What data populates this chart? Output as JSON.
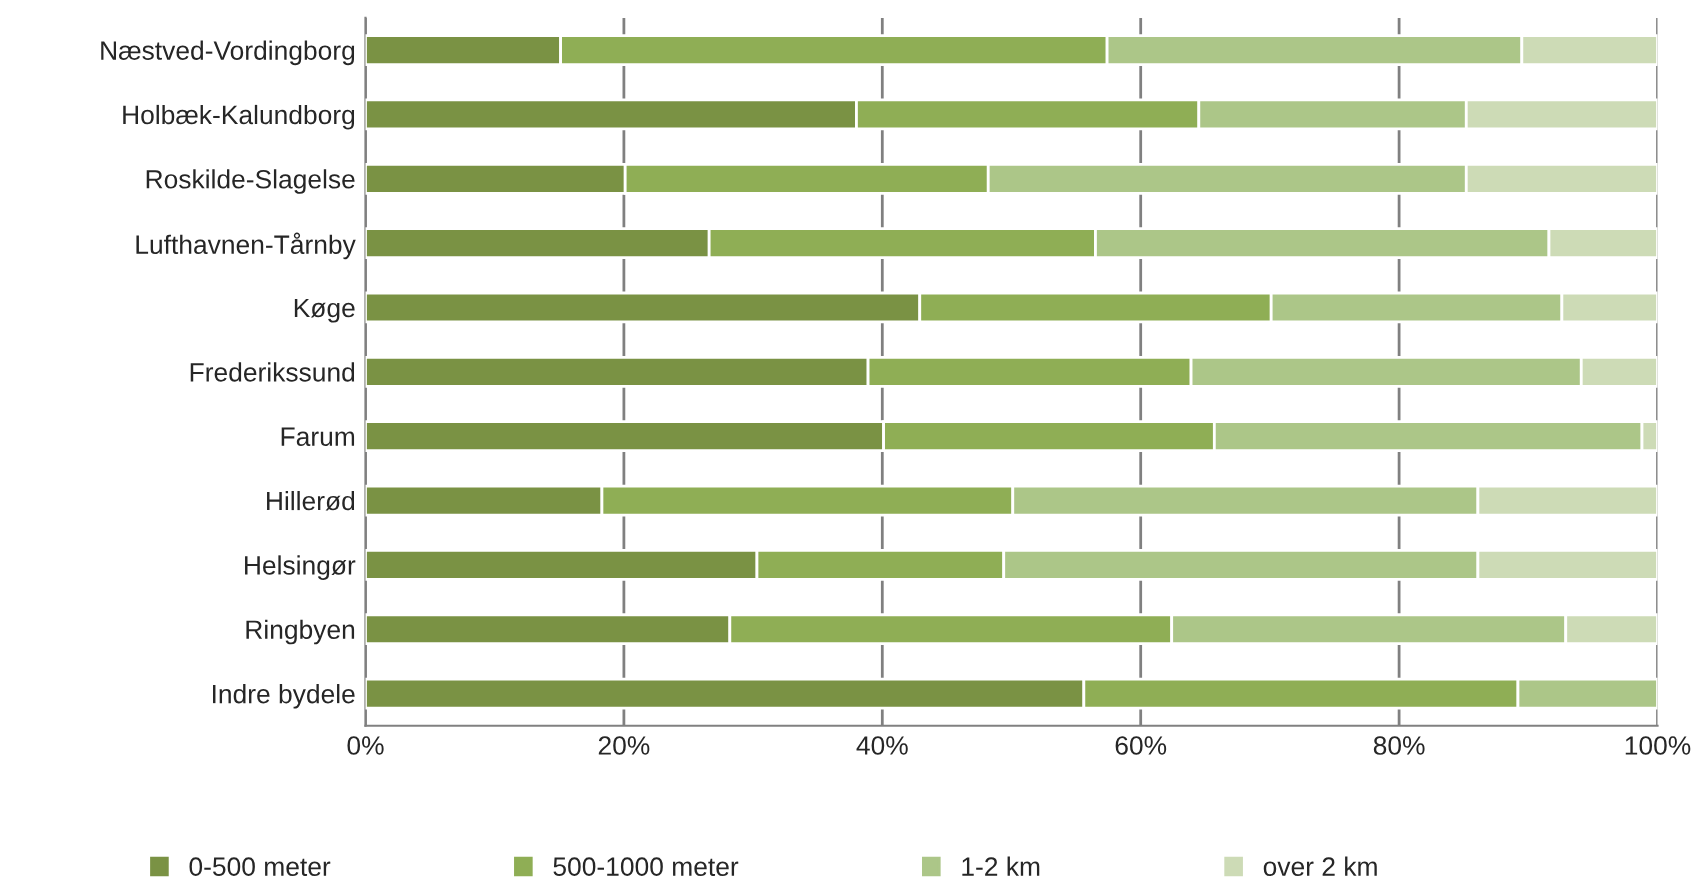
{
  "chart_data": {
    "type": "bar",
    "orientation": "horizontal",
    "stacked": true,
    "categories": [
      "Næstved-Vordingborg",
      "Holbæk-Kalundborg",
      "Roskilde-Slagelse",
      "Lufthavnen-Tårnby",
      "Køge",
      "Frederikssund",
      "Farum",
      "Hillerød",
      "Helsingør",
      "Ringbyen",
      "Indre bydele"
    ],
    "series": [
      {
        "name": "0-500 meter",
        "color": "#7a9244",
        "values": [
          15.1,
          38.0,
          20.1,
          26.6,
          42.9,
          38.9,
          40.1,
          18.3,
          30.3,
          28.2,
          55.6
        ]
      },
      {
        "name": "500-1000 meter",
        "color": "#8fae55",
        "values": [
          42.3,
          26.5,
          28.1,
          29.9,
          27.2,
          25.0,
          25.6,
          31.8,
          19.1,
          34.2,
          33.6
        ]
      },
      {
        "name": "1-2 km",
        "color": "#acc688",
        "values": [
          32.1,
          20.7,
          37.0,
          35.1,
          22.5,
          30.2,
          33.1,
          36.0,
          36.7,
          30.5,
          10.8
        ]
      },
      {
        "name": "over 2 km",
        "color": "#cddbb6",
        "values": [
          10.5,
          14.8,
          14.8,
          8.4,
          7.4,
          5.9,
          1.2,
          13.9,
          13.9,
          7.1,
          null
        ]
      }
    ],
    "xlim": [
      0,
      100
    ],
    "xticks": [
      {
        "value": 0,
        "label": "0%"
      },
      {
        "value": 20,
        "label": "20%"
      },
      {
        "value": 40,
        "label": "40%"
      },
      {
        "value": 60,
        "label": "60%"
      },
      {
        "value": 80,
        "label": "80%"
      },
      {
        "value": 100,
        "label": "100%"
      }
    ],
    "grid": "x",
    "legend": "bottom"
  }
}
